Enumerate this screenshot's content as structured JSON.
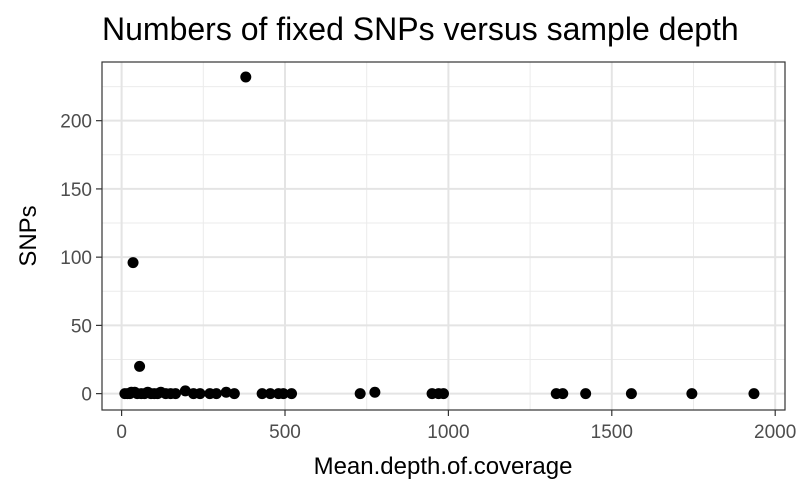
{
  "chart_data": {
    "type": "scatter",
    "title": "Numbers of fixed SNPs versus sample depth",
    "xlabel": "Mean.depth.of.coverage",
    "ylabel": "SNPs",
    "xlim": [
      -60,
      2030
    ],
    "ylim": [
      -12,
      243
    ],
    "xticks": [
      0,
      500,
      1000,
      1500,
      2000
    ],
    "yticks": [
      0,
      50,
      100,
      150,
      200
    ],
    "grid": true,
    "point_color": "#000000",
    "points": [
      {
        "x": 380,
        "y": 232
      },
      {
        "x": 35,
        "y": 96
      },
      {
        "x": 55,
        "y": 20
      },
      {
        "x": 10,
        "y": 0
      },
      {
        "x": 18,
        "y": 0
      },
      {
        "x": 25,
        "y": 0
      },
      {
        "x": 30,
        "y": 1
      },
      {
        "x": 40,
        "y": 1
      },
      {
        "x": 48,
        "y": 0
      },
      {
        "x": 60,
        "y": 0
      },
      {
        "x": 70,
        "y": 0
      },
      {
        "x": 80,
        "y": 1
      },
      {
        "x": 90,
        "y": 0
      },
      {
        "x": 100,
        "y": 0
      },
      {
        "x": 110,
        "y": 0
      },
      {
        "x": 120,
        "y": 1
      },
      {
        "x": 135,
        "y": 0
      },
      {
        "x": 150,
        "y": 0
      },
      {
        "x": 165,
        "y": 0
      },
      {
        "x": 195,
        "y": 2
      },
      {
        "x": 220,
        "y": 0
      },
      {
        "x": 240,
        "y": 0
      },
      {
        "x": 270,
        "y": 0
      },
      {
        "x": 290,
        "y": 0
      },
      {
        "x": 320,
        "y": 1
      },
      {
        "x": 345,
        "y": 0
      },
      {
        "x": 430,
        "y": 0
      },
      {
        "x": 455,
        "y": 0
      },
      {
        "x": 480,
        "y": 0
      },
      {
        "x": 495,
        "y": 0
      },
      {
        "x": 520,
        "y": 0
      },
      {
        "x": 730,
        "y": 0
      },
      {
        "x": 775,
        "y": 1
      },
      {
        "x": 950,
        "y": 0
      },
      {
        "x": 970,
        "y": 0
      },
      {
        "x": 985,
        "y": 0
      },
      {
        "x": 1330,
        "y": 0
      },
      {
        "x": 1350,
        "y": 0
      },
      {
        "x": 1420,
        "y": 0
      },
      {
        "x": 1560,
        "y": 0
      },
      {
        "x": 1745,
        "y": 0
      },
      {
        "x": 1935,
        "y": 0
      }
    ]
  }
}
